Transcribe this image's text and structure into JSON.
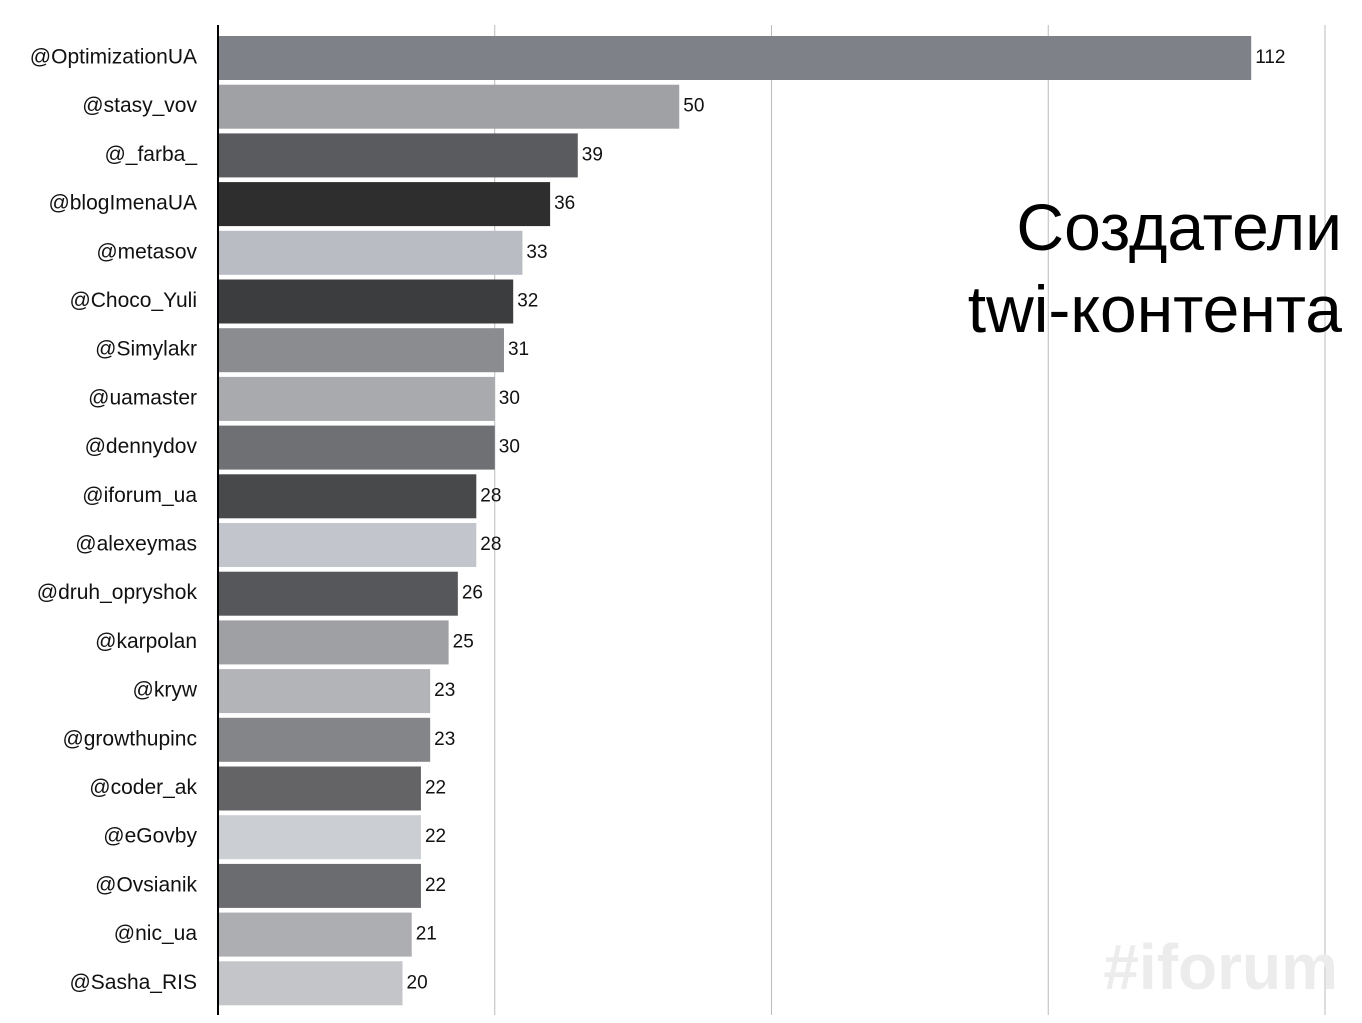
{
  "chart_data": {
    "type": "barh",
    "title": "Создатели twi-контента",
    "watermark": "#iforum",
    "categories": [
      "@OptimizationUA",
      "@stasy_vov",
      "@_farba_",
      "@blogImenaUA",
      "@metasov",
      "@Choco_Yuli",
      "@Simylakr",
      "@uamaster",
      "@dennydov",
      "@iforum_ua",
      "@alexeymas",
      "@druh_opryshok",
      "@karpolan",
      "@kryw",
      "@growthupinc",
      "@coder_ak",
      "@eGovby",
      "@Ovsianik",
      "@nic_ua",
      "@Sasha_RIS"
    ],
    "values": [
      112,
      50,
      39,
      36,
      33,
      32,
      31,
      30,
      30,
      28,
      28,
      26,
      25,
      23,
      23,
      22,
      22,
      22,
      21,
      20
    ],
    "colors": [
      "#7f8189",
      "#a0a1a4",
      "#5a5b5f",
      "#2e2e2f",
      "#b9bcc3",
      "#3c3d3f",
      "#8b8c90",
      "#a9aaad",
      "#6f7074",
      "#48494b",
      "#c2c5cc",
      "#56575a",
      "#9fa0a4",
      "#b3b4b7",
      "#848588",
      "#646466",
      "#cbced3",
      "#6b6c70",
      "#adaeb1",
      "#c4c5c8"
    ],
    "xlim": [
      0,
      120
    ],
    "xticks": [
      0,
      30,
      60,
      90,
      120
    ],
    "grid": true
  }
}
